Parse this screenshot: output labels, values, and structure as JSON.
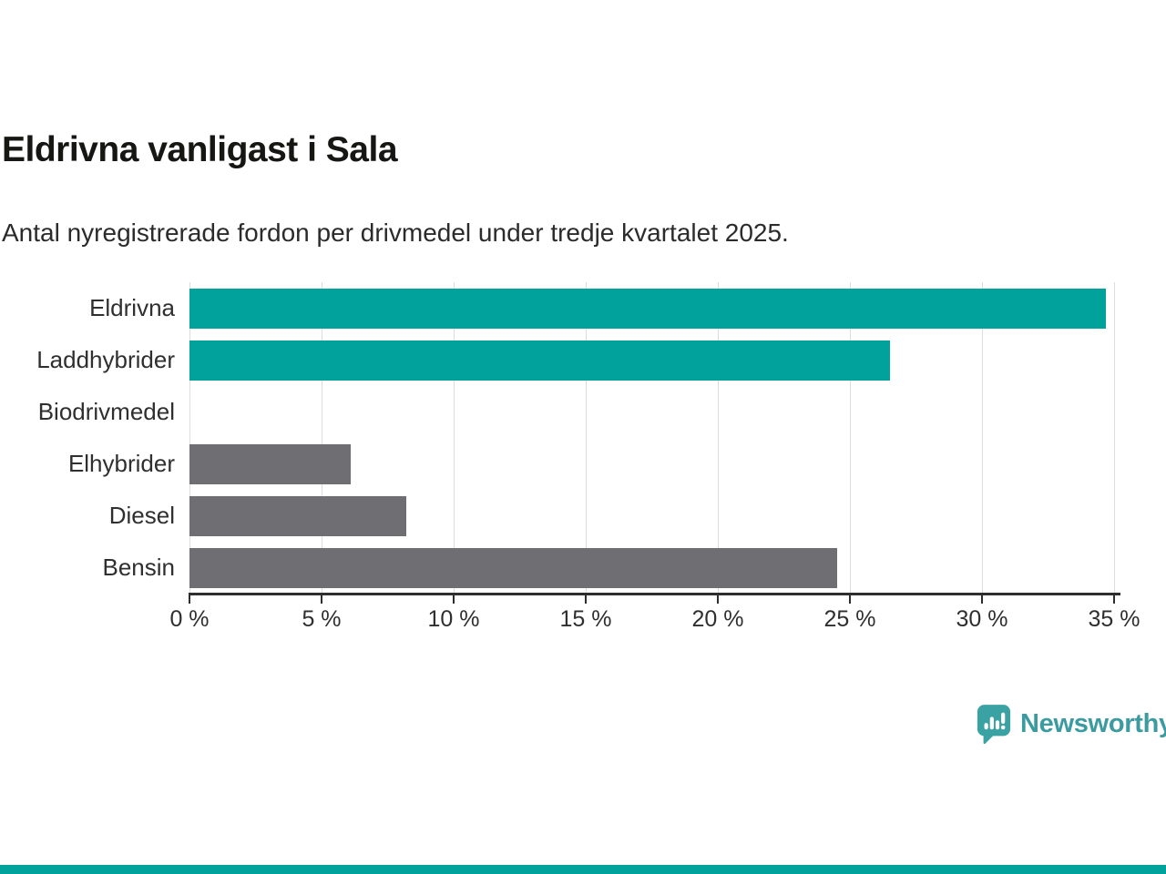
{
  "header": {
    "title": "Eldrivna vanligast i Sala",
    "subtitle": "Antal nyregistrerade fordon per drivmedel under tredje kvartalet 2025."
  },
  "chart_data": {
    "type": "bar",
    "orientation": "horizontal",
    "title": "Eldrivna vanligast i Sala",
    "subtitle": "Antal nyregistrerade fordon per drivmedel under tredje kvartalet 2025.",
    "categories": [
      "Eldrivna",
      "Laddhybrider",
      "Biodrivmedel",
      "Elhybrider",
      "Diesel",
      "Bensin"
    ],
    "values": [
      34.7,
      26.5,
      0,
      6.1,
      8.2,
      24.5
    ],
    "unit": "%",
    "bar_colors": [
      "#00a29b",
      "#00a29b",
      "#6e6e73",
      "#6e6e73",
      "#6e6e73",
      "#6e6e73"
    ],
    "x_ticks": [
      {
        "value": 0,
        "label": "0 %"
      },
      {
        "value": 5,
        "label": "5 %"
      },
      {
        "value": 10,
        "label": "10 %"
      },
      {
        "value": 15,
        "label": "15 %"
      },
      {
        "value": 20,
        "label": "20 %"
      },
      {
        "value": 25,
        "label": "25 %"
      },
      {
        "value": 30,
        "label": "30 %"
      },
      {
        "value": 35,
        "label": "35 %"
      }
    ],
    "xlim": [
      0,
      35.2
    ],
    "grid": true,
    "legend": "none"
  },
  "footer": {
    "brand": "Newsworthy",
    "logo_icon": "newsworthy-speech-bubble-bar-chart-icon",
    "brand_color": "#3b9ba0",
    "logo_color": "#3aa2a2"
  },
  "colors": {
    "highlight_bar": "#00a29b",
    "default_bar": "#6e6e73",
    "axis": "#2e2e2e",
    "gridline": "#dcdcdc",
    "text": "#2f2f2f",
    "title_text": "#161613",
    "accent_strip": "#00a29b"
  }
}
